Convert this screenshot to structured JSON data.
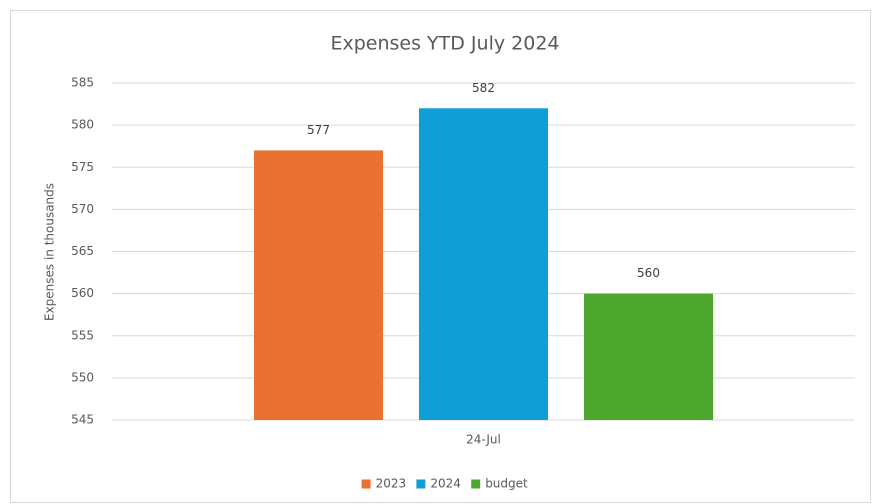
{
  "chart_data": {
    "type": "bar",
    "title": "Expenses YTD July 2024",
    "y_label": "Expenses in thousands",
    "categories": [
      "24-Jul"
    ],
    "series": [
      {
        "name": "2023",
        "color": "#e97132",
        "values": [
          577
        ]
      },
      {
        "name": "2024",
        "color": "#0f9ed5",
        "values": [
          582
        ]
      },
      {
        "name": "budget",
        "color": "#4ea72e",
        "values": [
          560
        ]
      }
    ],
    "ylim": [
      545,
      585
    ],
    "yticks": [
      545,
      550,
      555,
      560,
      565,
      570,
      575,
      580,
      585
    ],
    "grid": true,
    "legend": "bottom"
  }
}
